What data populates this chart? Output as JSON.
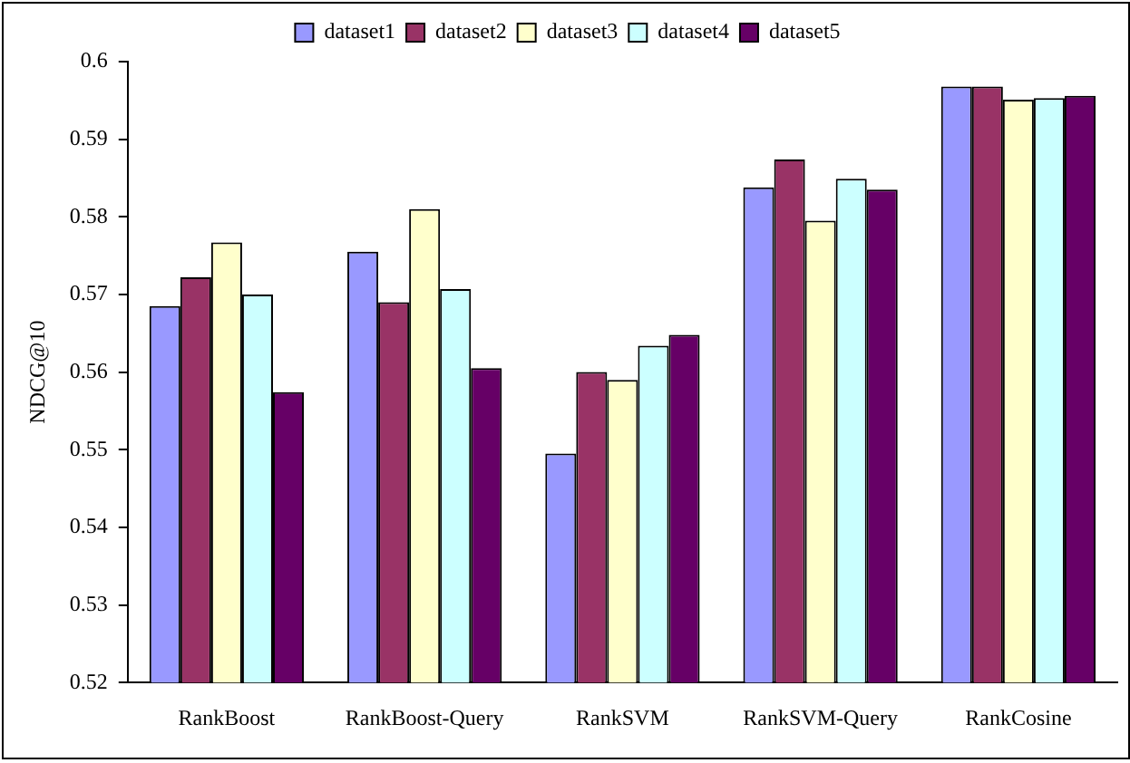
{
  "chart_data": {
    "type": "bar",
    "ylabel": "NDCG@10",
    "categories": [
      "RankBoost",
      "RankBoost-Query",
      "RankSVM",
      "RankSVM-Query",
      "RankCosine"
    ],
    "series": [
      {
        "name": "dataset1",
        "color": "#9999ff",
        "values": [
          0.5685,
          0.5755,
          0.5495,
          0.5838,
          0.5968
        ]
      },
      {
        "name": "dataset2",
        "color": "#993366",
        "values": [
          0.5722,
          0.569,
          0.56,
          0.5874,
          0.5968
        ]
      },
      {
        "name": "dataset3",
        "color": "#ffffcc",
        "values": [
          0.5767,
          0.581,
          0.559,
          0.5795,
          0.5951
        ]
      },
      {
        "name": "dataset4",
        "color": "#ccffff",
        "values": [
          0.57,
          0.5707,
          0.5634,
          0.5849,
          0.5953
        ]
      },
      {
        "name": "dataset5",
        "color": "#660066",
        "values": [
          0.5574,
          0.5605,
          0.5648,
          0.5835,
          0.5956
        ]
      }
    ],
    "ylim": [
      0.52,
      0.6
    ],
    "yticks": [
      0.52,
      0.53,
      0.54,
      0.55,
      0.56,
      0.57,
      0.58,
      0.59,
      0.6
    ],
    "grid": false,
    "legend": "top"
  }
}
